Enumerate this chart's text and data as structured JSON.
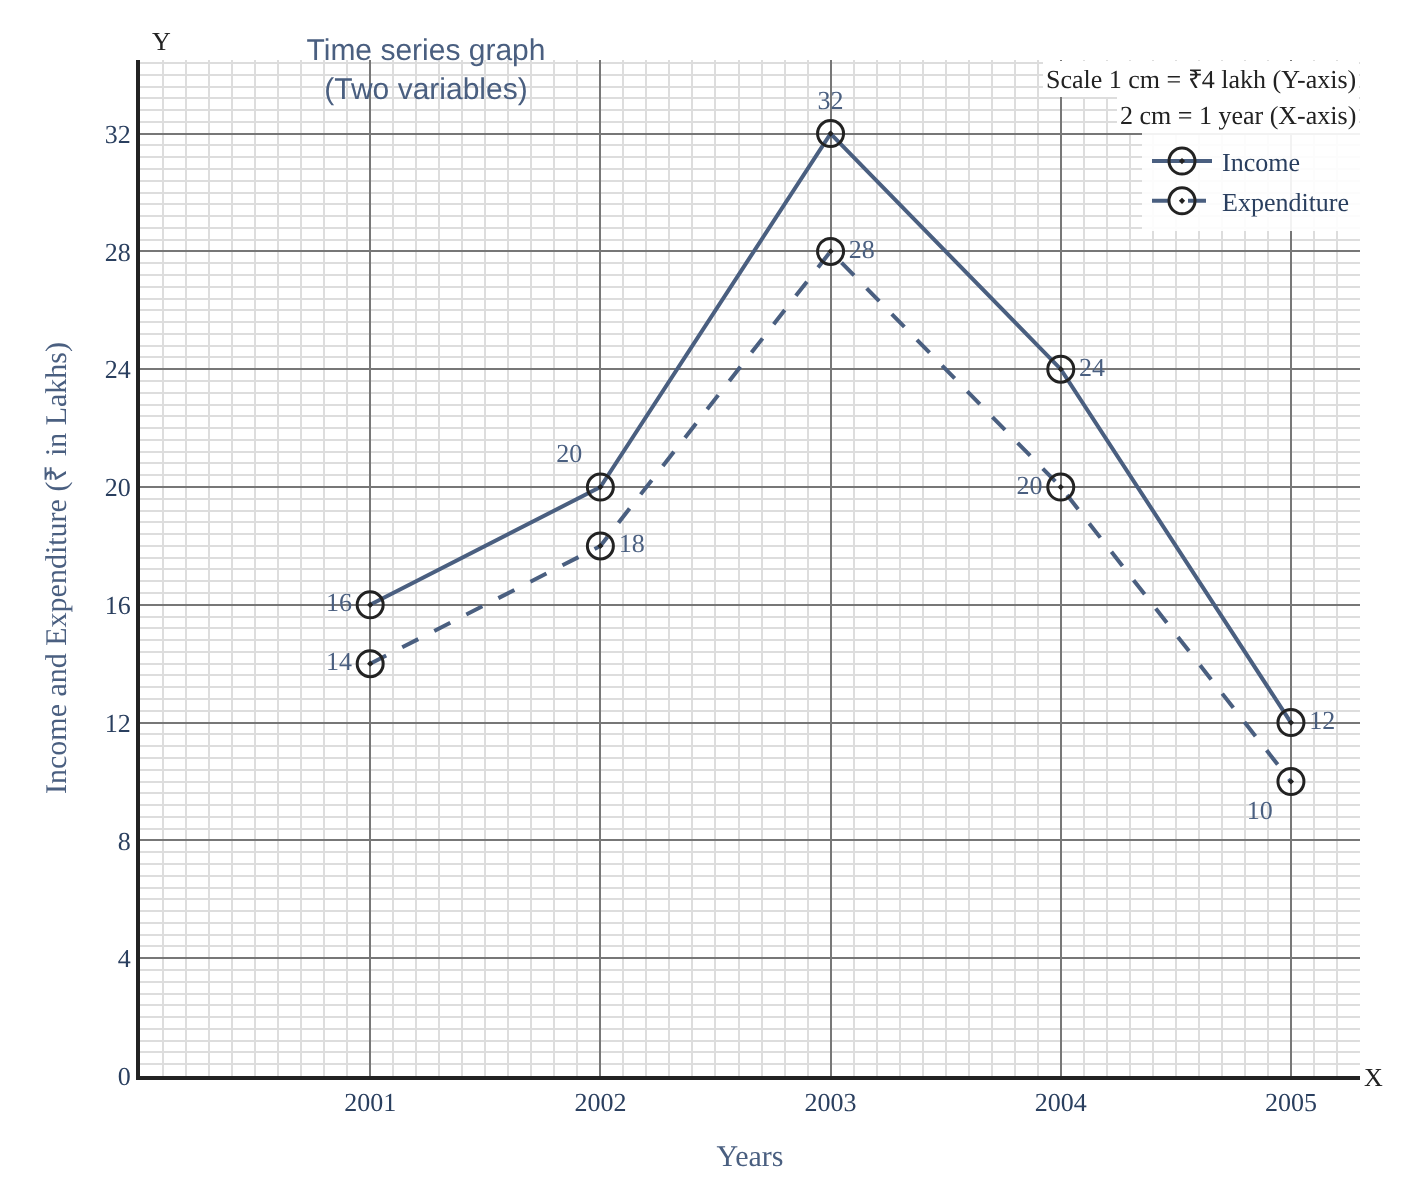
{
  "chart_data": {
    "type": "line",
    "title": "Time series graph\n(Two variables)",
    "xlabel": "Years",
    "ylabel": "Income and Expenditure (₹ in Lakhs)",
    "x": [
      2001,
      2002,
      2003,
      2004,
      2005
    ],
    "series": [
      {
        "name": "Income",
        "color": "#4a5f80",
        "values": [
          16,
          20,
          32,
          24,
          12
        ],
        "line_style": "solid"
      },
      {
        "name": "Expenditure",
        "color": "#4a5f80",
        "values": [
          14,
          18,
          28,
          20,
          10
        ],
        "line_style": "dashed"
      }
    ],
    "xlim": [
      2000,
      2005.3
    ],
    "xticks": [
      2001,
      2002,
      2003,
      2004,
      2005
    ],
    "ylim": [
      0,
      34.5
    ],
    "yticks": [
      0,
      4,
      8,
      12,
      16,
      20,
      24,
      28,
      32
    ],
    "annotations": [
      "Scale 1 cm = ₹4 lakh (Y-axis)",
      "2 cm = 1 year (X-axis)",
      "Y",
      "X"
    ],
    "grid": true,
    "legend": "top right",
    "marker": "circle",
    "data_labels": true
  }
}
